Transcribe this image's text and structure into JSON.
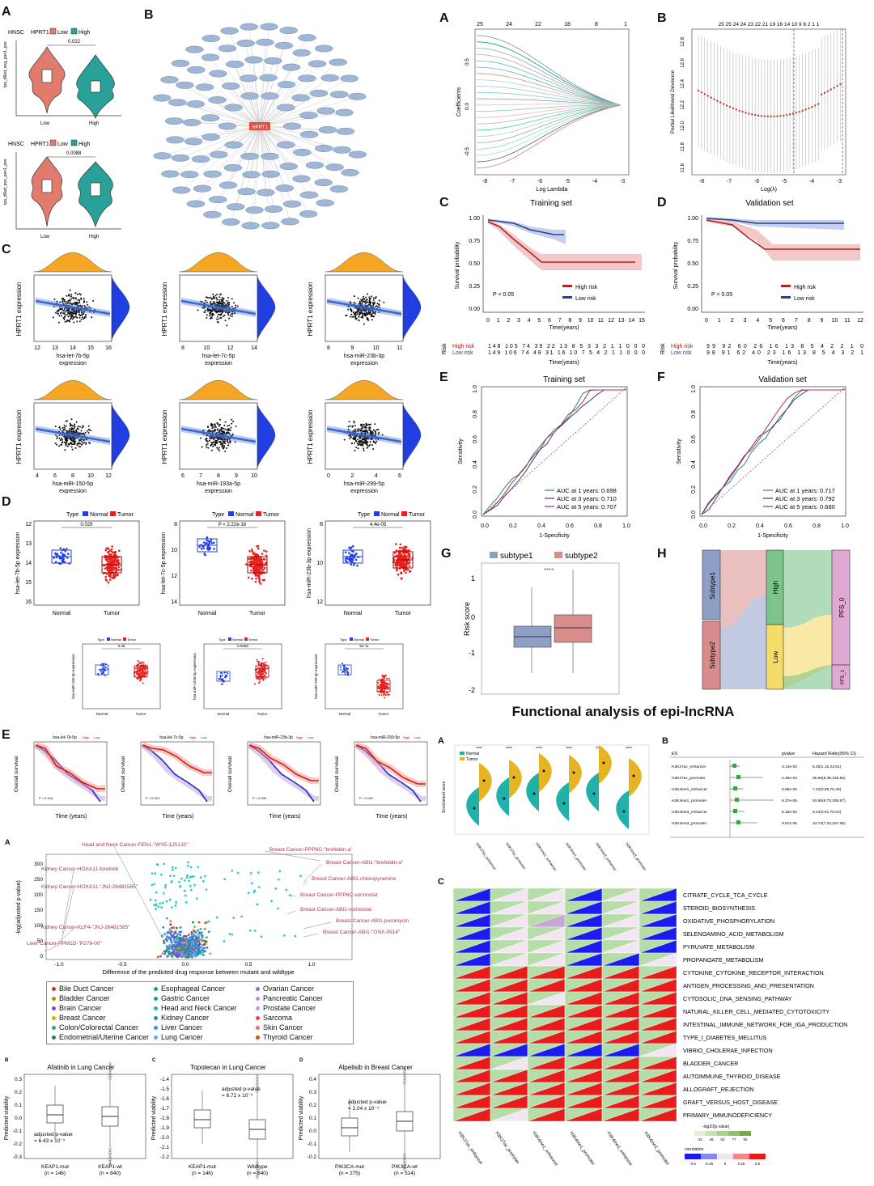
{
  "violin": {
    "label": "A",
    "cohort": "HNSC",
    "gene": "HPRT1",
    "low": "Low",
    "high": "High",
    "top": {
      "pval": "0.022",
      "ylabel": "tpa_d9ad_neg_pan1_pos"
    },
    "bottom": {
      "pval": "0.0088",
      "ylabel": "tpa_d9ad_pos_pan1_pos"
    },
    "xticks": [
      "Low",
      "High"
    ]
  },
  "network": {
    "label": "B",
    "center": "HPRT1"
  },
  "scatter": {
    "label": "C",
    "ylabel": "HPRT1 expression",
    "plots": [
      {
        "x": "hsa-let-7b-5p",
        "ticks": [
          "12",
          "13",
          "14",
          "15",
          "16"
        ]
      },
      {
        "x": "hsa-let-7c-5p",
        "ticks": [
          "8",
          "10",
          "12",
          "14"
        ]
      },
      {
        "x": "hsa-miR-23b-3p",
        "ticks": [
          "8",
          "9",
          "10",
          "11"
        ]
      },
      {
        "x": "hsa-miR-150-5p",
        "ticks": [
          "4",
          "6",
          "8",
          "10",
          "12"
        ]
      },
      {
        "x": "hsa-miR-193a-5p",
        "ticks": [
          "6",
          "7",
          "8",
          "9",
          "10"
        ]
      },
      {
        "x": "hsa-miR-299-5p",
        "ticks": [
          "0",
          "2",
          "4",
          "6"
        ]
      }
    ],
    "suffix": "expression"
  },
  "boxes_d": {
    "label": "D",
    "type": "Type",
    "normal": "Normal",
    "tumor": "Tumor",
    "plots": [
      {
        "y": "hsa-let-7b-5p expression",
        "p": "0.029",
        "ticks": [
          "12",
          "13",
          "14",
          "15",
          "16"
        ]
      },
      {
        "y": "hsa-let-7c-5p expression",
        "p": "P < 2.22e-16",
        "ticks": [
          "8",
          "10",
          "12",
          "14"
        ]
      },
      {
        "y": "hsa-miR-23b-3p expression",
        "p": "4.4e-05",
        "ticks": [
          "8",
          "10",
          "12"
        ]
      }
    ],
    "small_plots": [
      {
        "y": "hsa-miR-150-5p expression",
        "p": "0.48"
      },
      {
        "y": "hsa-miR-193a-5p expression",
        "p": "0.0058"
      },
      {
        "y": "hsa-miR-299-5p expression",
        "p": "5e-11"
      }
    ]
  },
  "km_e": {
    "label": "E",
    "titles": [
      "hsa-let-7b-5p",
      "hsa-let-7c-5p",
      "hsa-miR-23b-3p",
      "hsa-miR-299-5p"
    ],
    "ylabel": "Overall survival",
    "xlabel": "Time (years)",
    "pvals": [
      "P = 0.104",
      "P = 0.001",
      "P = 0.003",
      "P = 0.001"
    ],
    "legend": [
      "High",
      "Low"
    ]
  },
  "lasso": {
    "A": {
      "label": "A",
      "xlabel": "Log Lambda",
      "ylabel": "Coefficients",
      "top_ticks": [
        "25",
        "24",
        "22",
        "18",
        "8",
        "1"
      ],
      "x_ticks": [
        "-8",
        "-7",
        "-6",
        "-5",
        "-4",
        "-3"
      ],
      "y_ticks": [
        "0.5",
        "0.0",
        "-0.5"
      ]
    },
    "B": {
      "label": "B",
      "xlabel": "Log(λ)",
      "ylabel": "Partial Likelihood Deviance",
      "top_ticks": "25 25 24 24 23 22 21 19 16 14 10 9 6 2 1 1",
      "x_ticks": [
        "-8",
        "-7",
        "-6",
        "-5",
        "-4",
        "-3"
      ],
      "y_ticks": [
        "12.8",
        "12.6",
        "12.4",
        "12.2",
        "12.0",
        "11.8",
        "11.6"
      ]
    }
  },
  "surv": {
    "C": {
      "label": "C",
      "title": "Training set",
      "p": "P < 0.05",
      "legend": [
        "High risk",
        "Low risk"
      ],
      "ylabel": "Survival probability",
      "xlabel": "Time(years)",
      "x_ticks": [
        "0",
        "1",
        "2",
        "3",
        "4",
        "5",
        "6",
        "7",
        "8",
        "9",
        "10",
        "11",
        "12",
        "13",
        "14",
        "15"
      ],
      "y_ticks": [
        "1.00",
        "0.75",
        "0.50",
        "0.25",
        "0.00"
      ],
      "risk_rows": [
        "High risk",
        "Low risk"
      ],
      "risk_high": "148 105 74 39 22 13 8 5 3 3 2 1 1 0 0 0",
      "risk_low": "149 106 74 49 31 16 10 7 5 4 2 1 1 0 0 0"
    },
    "D": {
      "label": "D",
      "title": "Validation set",
      "p": "P < 0.05",
      "legend": [
        "High risk",
        "Low risk"
      ],
      "ylabel": "Survival probability",
      "xlabel": "Time(years)",
      "x_ticks": [
        "0",
        "1",
        "2",
        "3",
        "4",
        "5",
        "6",
        "7",
        "8",
        "9",
        "10",
        "11",
        "12"
      ],
      "y_ticks": [
        "1.00",
        "0.75",
        "0.50",
        "0.25",
        "0.00"
      ],
      "risk_rows": [
        "High risk",
        "Low risk"
      ],
      "risk_high": "99 92 60 26 16 13 8 5 4 2 2 1 0",
      "risk_low": "98 91 62 40 23 16 13 8 5 4 3 2 1"
    }
  },
  "roc": {
    "E": {
      "label": "E",
      "title": "Training set",
      "xlabel": "1-Specificity",
      "ylabel": "Sensitivity",
      "ticks": [
        "0.0",
        "0.2",
        "0.4",
        "0.6",
        "0.8",
        "1.0"
      ],
      "auc": [
        "AUC at 1 years: 0.698",
        "AUC at 3 years: 0.710",
        "AUC at 5 years: 0.707"
      ]
    },
    "F": {
      "label": "F",
      "title": "Validation set",
      "xlabel": "1-Specificity",
      "ylabel": "Sensitivity",
      "ticks": [
        "0.0",
        "0.2",
        "0.4",
        "0.6",
        "0.8",
        "1.0"
      ],
      "auc": [
        "AUC at 1 years: 0.717",
        "AUC at 3 years: 0.792",
        "AUC at 5 years: 0.680"
      ]
    }
  },
  "subtype": {
    "label": "G",
    "legend": [
      "subtype1",
      "subtype2"
    ],
    "ylabel": "Risk score",
    "sig": "****",
    "y_ticks": [
      "1",
      "0",
      "-1",
      "-2"
    ]
  },
  "sankey": {
    "label": "H",
    "left": [
      "Subtype1",
      "Subtype2"
    ],
    "mid": [
      "High",
      "Low"
    ],
    "right": [
      "PFS_0",
      "PFS_1"
    ]
  },
  "func_title": "Functional analysis of epi-lncRNA",
  "epi": {
    "A": {
      "label": "A",
      "legend": [
        "Normal",
        "Tumor"
      ],
      "ylabel": "Enrichment score",
      "groups": [
        "H3K27ac_enhancer",
        "H3K27ac_promoter",
        "H3K4me1_enhancer",
        "H3K4me1_promoter",
        "H3K4me3_enhancer",
        "H3K4me3_promoter"
      ]
    },
    "B": {
      "label": "B",
      "headers": [
        "ES",
        "pvalue",
        "Hazard Ratio(95% CI)"
      ],
      "rows": [
        {
          "es": "H3K27ac_enhancer",
          "p": "3.14e-02",
          "hr": "5.25(1.16,23.61)"
        },
        {
          "es": "H3K27ac_promoter",
          "p": "2.28e-04",
          "hr": "36.55(5.38,245.96)"
        },
        {
          "es": "H3K4me1_enhancer",
          "p": "9.88e-03",
          "hr": "7.22(0.69,75.45)"
        },
        {
          "es": "H3K4me1_promoter",
          "p": "8.37e-05",
          "hr": "93.66(9.73,285.67)"
        },
        {
          "es": "H3K4me3_enhancer",
          "p": "6.15e-02",
          "hr": "6.24(0.91,75.02)"
        },
        {
          "es": "H3K4me3_promoter",
          "p": "9.57e-06",
          "hr": "34.73(7.22,167.06)"
        }
      ]
    },
    "C": {
      "label": "C",
      "pathways": [
        "CITRATE_CYCLE_TCA_CYCLE",
        "STEROID_BIOSYNTHESIS",
        "OXIDATIVE_PHOSPHORYLATION",
        "SELENOAMINO_ACID_METABOLISM",
        "PYRUVATE_METABOLISM",
        "PROPANOATE_METABOLISM",
        "CYTOKINE_CYTOKINE_RECEPTOR_INTERACTION",
        "ANTIGEN_PROCESSING_AND_PRESENTATION",
        "CYTOSOLIC_DNA_SENSING_PATHWAY",
        "NATURAL_KILLER_CELL_MEDIATED_CYTOTOXICITY",
        "INTESTINAL_IMMUNE_NETWORK_FOR_IGA_PRODUCTION",
        "TYPE_I_DIABETES_MELLITUS",
        "VIBRIO_CHOLERAE_INFECTION",
        "BLADDER_CANCER",
        "AUTOIMMUNE_THYROID_DISEASE",
        "ALLOGRAFT_REJECTION",
        "GRAFT_VERSUS_HOST_DISEASE",
        "PRIMARY_IMMUNODEFICIENCY"
      ],
      "cols": [
        "H3K27ac_enhancer",
        "H3K27ac_promoter",
        "H3K4me1_enhancer",
        "H3K4me1_promoter",
        "H3K4me3_enhancer",
        "H3K4me3_promoter"
      ],
      "sig_title": "-log10(p value)",
      "sig_ticks": [
        "33",
        "48",
        "63",
        "77",
        "92"
      ],
      "corr_title": "correlation",
      "corr_ticks": [
        "-0.5",
        "-0.25",
        "0",
        "0.25",
        "0.5"
      ]
    }
  },
  "drug": {
    "A": {
      "label": "A",
      "xlabel": "Difference of the predicted drug response between mutant and wildtype",
      "ylabel": "-log(adjusted p-value)",
      "x_ticks": [
        "-1.0",
        "-0.5",
        "0.0",
        "0.5",
        "1.0"
      ],
      "y_ticks": [
        "300",
        "250",
        "200",
        "150",
        "100",
        "50",
        "0"
      ],
      "annotations": [
        "Head and Neck Cancer-FEN1-\"WYE-125132\"",
        "Kidney Cancer-HOXA11-foretinib",
        "Kidney Cancer-HOXA11-\"JNJ-26481585\"",
        "Kidney Cancer-KLF4-\"JNJ-26481585\"",
        "Liver Cancer-PPM1D-\"P276-00\"",
        "Breast Cancer-PPP6C-\"brefeldin-a\"",
        "Breast Cancer-ABI1-\"brefeldin-a\"",
        "Breast Cancer-ABI1-chloropyramine",
        "Breast Cancer-PPP6C-vorinostat",
        "Breast Cancer-ABI1-vorinostat",
        "Breast Cancer-ABI1-puromycin",
        "Breast Cancer-ABI1-\"ONX-0914\""
      ],
      "legend": [
        {
          "name": "Bile Duct Cancer",
          "color": "#c0392b"
        },
        {
          "name": "Bladder Cancer",
          "color": "#b8860b"
        },
        {
          "name": "Brain Cancer",
          "color": "#8e44ad"
        },
        {
          "name": "Breast Cancer",
          "color": "#d4ac0d"
        },
        {
          "name": "Colon/Colorectal Cancer",
          "color": "#27ae60"
        },
        {
          "name": "Endometrial/Uterine Cancer",
          "color": "#1e8449"
        },
        {
          "name": "Esophageal Cancer",
          "color": "#16a085"
        },
        {
          "name": "Gastric Cancer",
          "color": "#17a589"
        },
        {
          "name": "Head and Neck Cancer",
          "color": "#1abc9c"
        },
        {
          "name": "Kidney Cancer",
          "color": "#2e86c1"
        },
        {
          "name": "Liver Cancer",
          "color": "#3498db"
        },
        {
          "name": "Lung Cancer",
          "color": "#5dade2"
        },
        {
          "name": "Ovarian Cancer",
          "color": "#a569bd"
        },
        {
          "name": "Pancreatic Cancer",
          "color": "#bb8fce"
        },
        {
          "name": "Prostate Cancer",
          "color": "#c39bd3"
        },
        {
          "name": "Sarcoma",
          "color": "#e74c3c"
        },
        {
          "name": "Skin Cancer",
          "color": "#ec7063"
        },
        {
          "name": "Thyroid Cancer",
          "color": "#d35400"
        }
      ]
    },
    "B": {
      "label": "B",
      "title": "Afatinib in Lung Cancer",
      "ylabel": "Predicted viability",
      "groups": [
        "KEAP1-mut",
        "KEAP1-wt"
      ],
      "n": [
        "(n = 146)",
        "(n = 840)"
      ],
      "pline1": "adjusted p-value",
      "pline2": "= 6.43 x 10⁻³",
      "y_ticks": [
        "0.3",
        "0.2",
        "0.1",
        "0.0",
        "-0.1",
        "-0.2",
        "-0.3"
      ]
    },
    "C": {
      "label": "C",
      "title": "Topotecan in Lung Cancer",
      "ylabel": "Predicted viability",
      "groups": [
        "KEAP1-mut",
        "Wildtype"
      ],
      "n": [
        "(n = 146)",
        "(n = 840)"
      ],
      "pline1": "adjusted p-value",
      "pline2": "= 6.72 x 10⁻³",
      "y_ticks": [
        "-1.4",
        "-1.5",
        "-1.6",
        "-1.7",
        "-1.8",
        "-1.9",
        "-2.0",
        "-2.1",
        "-2.2"
      ]
    },
    "D": {
      "label": "D",
      "title": "Alpelisib in Breast Cancer",
      "ylabel": "Predicted viability",
      "groups": [
        "PIK3CA-mut",
        "PIK3CA-wt"
      ],
      "n": [
        "(n = 275)",
        "(n = 514)"
      ],
      "pline1": "adjusted p-value",
      "pline2": "= 2.04 x 10⁻⁴",
      "y_ticks": [
        "0.4",
        "0.3",
        "0.2",
        "0.1",
        "0.0",
        "-0.1",
        "-0.2"
      ]
    }
  }
}
